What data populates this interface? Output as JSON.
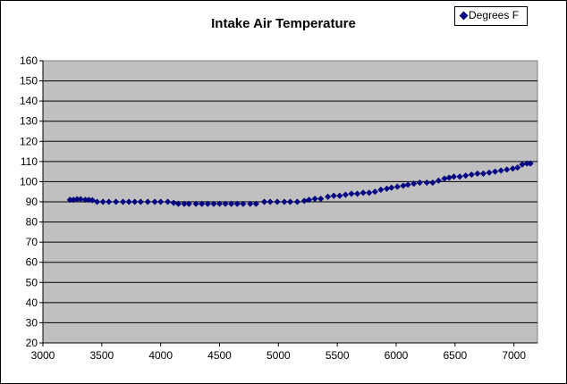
{
  "chart_data": {
    "type": "scatter",
    "title": "Intake Air Temperature",
    "xlabel": "",
    "ylabel": "",
    "xlim": [
      3000,
      7200
    ],
    "ylim": [
      20,
      160
    ],
    "x_ticks": [
      "3000",
      "3500",
      "4000",
      "4500",
      "5000",
      "5500",
      "6000",
      "6500",
      "7000"
    ],
    "y_ticks": [
      "20",
      "30",
      "40",
      "50",
      "60",
      "70",
      "80",
      "90",
      "100",
      "110",
      "120",
      "130",
      "140",
      "150",
      "160"
    ],
    "grid": "horizontal",
    "legend_position": "top-right",
    "plot_background": "#C0C0C0",
    "series": [
      {
        "name": "Degrees F",
        "color": "#000080",
        "marker": "diamond",
        "points": [
          [
            3230,
            91
          ],
          [
            3260,
            91
          ],
          [
            3290,
            91.3
          ],
          [
            3320,
            91.3
          ],
          [
            3360,
            91
          ],
          [
            3390,
            91
          ],
          [
            3420,
            90.8
          ],
          [
            3460,
            90
          ],
          [
            3510,
            90
          ],
          [
            3560,
            90
          ],
          [
            3620,
            90
          ],
          [
            3680,
            90
          ],
          [
            3730,
            90
          ],
          [
            3780,
            90
          ],
          [
            3830,
            90
          ],
          [
            3890,
            90
          ],
          [
            3950,
            90
          ],
          [
            4000,
            90
          ],
          [
            4060,
            90
          ],
          [
            4110,
            89.5
          ],
          [
            4150,
            89
          ],
          [
            4200,
            89
          ],
          [
            4240,
            89
          ],
          [
            4300,
            89
          ],
          [
            4350,
            89
          ],
          [
            4400,
            89
          ],
          [
            4450,
            89
          ],
          [
            4500,
            89
          ],
          [
            4550,
            89
          ],
          [
            4600,
            89
          ],
          [
            4650,
            89
          ],
          [
            4700,
            89
          ],
          [
            4760,
            89
          ],
          [
            4810,
            89
          ],
          [
            4880,
            90
          ],
          [
            4930,
            90
          ],
          [
            4990,
            90
          ],
          [
            5050,
            90
          ],
          [
            5100,
            90
          ],
          [
            5160,
            90
          ],
          [
            5220,
            90.5
          ],
          [
            5260,
            91
          ],
          [
            5310,
            91.5
          ],
          [
            5360,
            91.5
          ],
          [
            5420,
            92.5
          ],
          [
            5470,
            93
          ],
          [
            5520,
            93
          ],
          [
            5570,
            93.5
          ],
          [
            5620,
            94
          ],
          [
            5670,
            94
          ],
          [
            5720,
            94.5
          ],
          [
            5770,
            94.5
          ],
          [
            5820,
            95
          ],
          [
            5870,
            96
          ],
          [
            5920,
            96.5
          ],
          [
            5960,
            97
          ],
          [
            6010,
            97.5
          ],
          [
            6060,
            98
          ],
          [
            6100,
            98.5
          ],
          [
            6150,
            99
          ],
          [
            6200,
            99.5
          ],
          [
            6260,
            99.5
          ],
          [
            6310,
            99.5
          ],
          [
            6360,
            100.5
          ],
          [
            6410,
            101.5
          ],
          [
            6450,
            102
          ],
          [
            6490,
            102.5
          ],
          [
            6540,
            102.5
          ],
          [
            6590,
            103
          ],
          [
            6640,
            103.5
          ],
          [
            6690,
            104
          ],
          [
            6740,
            104
          ],
          [
            6790,
            104.5
          ],
          [
            6840,
            105
          ],
          [
            6890,
            105.5
          ],
          [
            6940,
            106
          ],
          [
            6990,
            106.5
          ],
          [
            7030,
            107
          ],
          [
            7070,
            108.5
          ],
          [
            7110,
            109
          ],
          [
            7140,
            109
          ]
        ]
      }
    ]
  }
}
